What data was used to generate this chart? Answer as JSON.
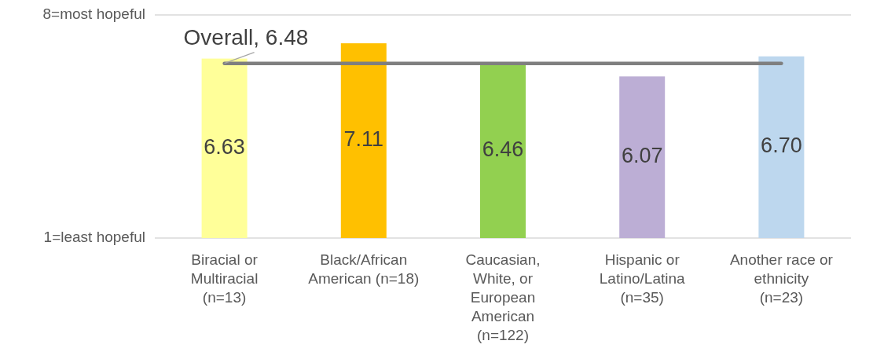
{
  "chart_data": {
    "type": "bar",
    "categories": [
      "Biracial or Multiracial (n=13)",
      "Black/African American (n=18)",
      "Caucasian, White, or European American (n=122)",
      "Hispanic or Latino/Latina (n=35)",
      "Another race or ethnicity (n=23)"
    ],
    "values": [
      6.63,
      7.11,
      6.46,
      6.07,
      6.7
    ],
    "colors": [
      "#ffff99",
      "#ffc000",
      "#92d050",
      "#bcaed5",
      "#bdd7ee"
    ],
    "ylim": [
      1,
      8
    ],
    "yticks": [
      {
        "value": 1,
        "label": "1=least hopeful"
      },
      {
        "value": 8,
        "label": "8=most hopeful"
      }
    ],
    "value_labels": [
      "6.63",
      "7.11",
      "6.46",
      "6.07",
      "6.70"
    ],
    "ref_lines": [
      {
        "axis": "y",
        "value": 6.48,
        "label": "Overall, 6.48",
        "color": "#7f7f7f"
      }
    ]
  }
}
